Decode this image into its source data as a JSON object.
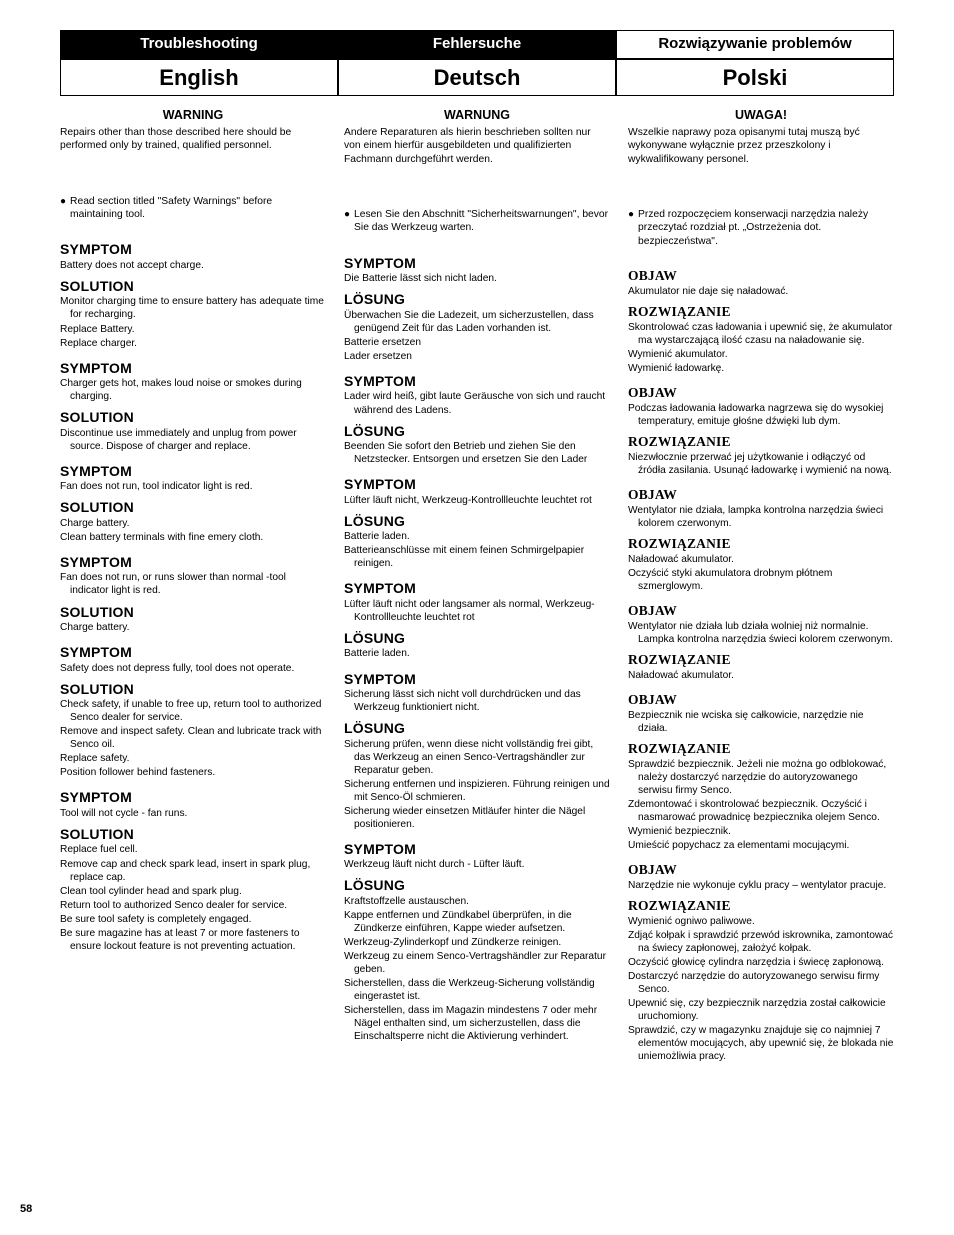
{
  "headers": {
    "section": {
      "en": "Troubleshooting",
      "de": "Fehlersuche",
      "pl": "Rozwiązywanie problemów"
    },
    "lang": {
      "en": "English",
      "de": "Deutsch",
      "pl": "Polski"
    }
  },
  "warning": {
    "en": {
      "title": "WARNING",
      "body": "Repairs other than those described here should be performed only by trained, qualified personnel."
    },
    "de": {
      "title": "WARNUNG",
      "body": "Andere Reparaturen als hierin beschrieben sollten nur von einem hierfür ausgebildeten und qualifizierten Fachmann durchgeführt werden."
    },
    "pl": {
      "title": "UWAGA!",
      "body": "Wszelkie naprawy poza opisanymi tutaj muszą być wykonywane wyłącznie przez przeszkolony i wykwalifikowany personel."
    }
  },
  "bullet": {
    "en": "Read section titled \"Safety Warnings\" before maintaining tool.",
    "de": "Lesen Sie den Abschnitt \"Sicherheitswarnungen\", bevor Sie das Werkzeug warten.",
    "pl": "Przed rozpoczęciem konserwacji narzędzia należy przeczytać rozdział pt. „Ostrzeżenia dot. bezpieczeństwa\"."
  },
  "labels": {
    "en": {
      "symptom": "SYMPTOM",
      "solution": "SOLUTION"
    },
    "de": {
      "symptom": "SYMPTOM",
      "solution": "LÖSUNG"
    },
    "pl": {
      "symptom": "OBJAW",
      "solution": "ROZWIĄZANIE"
    }
  },
  "en_items": [
    {
      "sym": "Battery does not accept charge.",
      "sol": [
        "Monitor charging time to ensure battery has adequate time for recharging.",
        "Replace Battery.",
        "Replace charger."
      ]
    },
    {
      "sym": "Charger gets hot, makes loud noise or smokes during charging.",
      "sol": [
        "Discontinue use immediately and unplug from power source. Dispose of charger and replace."
      ]
    },
    {
      "sym": "Fan does not run, tool indicator light is red.",
      "sol": [
        "Charge battery.",
        "Clean battery terminals with fine emery cloth."
      ]
    },
    {
      "sym": "Fan does not run, or runs slower than normal -tool indicator light is red.",
      "sol": [
        "Charge battery."
      ]
    },
    {
      "sym": "Safety does not depress fully, tool does not operate.",
      "sol": [
        "Check safety, if unable to free up, return tool to authorized Senco dealer for service.",
        "Remove and inspect safety. Clean and lubricate track with Senco oil.",
        "Replace safety.",
        "Position follower behind fasteners."
      ]
    },
    {
      "sym": "Tool will not cycle - fan runs.",
      "sol": [
        "Replace fuel cell.",
        "Remove cap and check spark lead, insert in spark plug, replace cap.",
        "Clean tool cylinder head and spark plug.",
        "Return tool to authorized Senco dealer for service.",
        "Be sure tool safety is completely engaged.",
        "Be  sure magazine has at least 7 or more fasteners to ensure lockout feature is not preventing actuation."
      ]
    }
  ],
  "de_items": [
    {
      "sym": "Die Batterie lässt sich nicht laden.",
      "sol": [
        "Überwachen Sie die Ladezeit, um sicherzustellen, dass genügend Zeit für das Laden vorhanden ist.",
        "Batterie ersetzen",
        "Lader ersetzen"
      ]
    },
    {
      "sym": "Lader wird heiß, gibt laute Geräusche von sich und raucht während des Ladens.",
      "sol": [
        "Beenden Sie sofort den Betrieb und ziehen Sie den Netzstecker. Entsorgen und ersetzen Sie den Lader"
      ]
    },
    {
      "sym": "Lüfter läuft nicht, Werkzeug-Kontrollleuchte leuchtet rot",
      "sol": [
        "Batterie laden.",
        "Batterieanschlüsse mit einem feinen Schmirgelpapier reinigen."
      ]
    },
    {
      "sym": "Lüfter läuft nicht oder langsamer als normal, Werkzeug-Kontrollleuchte leuchtet rot",
      "sol": [
        "Batterie laden."
      ]
    },
    {
      "sym": "Sicherung lässt sich nicht voll durchdrücken und das Werkzeug funktioniert nicht.",
      "sol": [
        "Sicherung prüfen, wenn diese nicht vollständig frei gibt, das Werkzeug an einen Senco-Vertragshändler zur Reparatur geben.",
        "Sicherung entfernen und inspizieren. Führung reinigen und mit Senco-Öl schmieren.",
        "Sicherung wieder einsetzen Mitläufer hinter die Nägel positionieren."
      ]
    },
    {
      "sym": "Werkzeug läuft nicht durch - Lüfter läuft.",
      "sol": [
        "Kraftstoffzelle austauschen.",
        "Kappe entfernen und Zündkabel überprüfen, in die Zündkerze einführen, Kappe wieder aufsetzen.",
        "Werkzeug-Zylinderkopf und Zündkerze reinigen.",
        "Werkzeug zu einem Senco-Vertragshändler zur Reparatur geben.",
        "Sicherstellen, dass die Werkzeug-Sicherung vollständig eingerastet ist.",
        "Sicherstellen, dass im Magazin mindestens 7 oder mehr Nägel enthalten sind, um sicherzustellen, dass die Einschaltsperre nicht die Aktivierung verhindert."
      ]
    }
  ],
  "pl_items": [
    {
      "sym": "Akumulator nie daje się naładować.",
      "sol": [
        "Skontrolować czas ładowania i upewnić się, że akumulator ma wystarczającą ilość czasu na naładowanie się.",
        "Wymienić akumulator.",
        "Wymienić ładowarkę."
      ]
    },
    {
      "sym": "Podczas ładowania ładowarka nagrzewa się do wysokiej temperatury, emituje głośne dźwięki lub dym.",
      "sol": [
        "Niezwłocznie przerwać jej użytkowanie i odłączyć od źródła zasilania. Usunąć ładowarkę i wymienić na nową."
      ]
    },
    {
      "sym": "Wentylator nie działa, lampka kontrolna narzędzia świeci kolorem czerwonym.",
      "sol": [
        "Naładować akumulator.",
        "Oczyścić styki akumulatora drobnym płótnem szmerglowym."
      ]
    },
    {
      "sym": "Wentylator nie działa lub działa wolniej niż normalnie. Lampka kontrolna narzędzia świeci kolorem czerwonym.",
      "sol": [
        "Naładować akumulator."
      ]
    },
    {
      "sym": "Bezpiecznik nie wciska się całkowicie, narzędzie nie działa.",
      "sol": [
        "Sprawdzić bezpiecznik. Jeżeli nie można go odblokować, należy dostarczyć narzędzie do autoryzowanego serwisu firmy Senco.",
        "Zdemontować i skontrolować bezpiecznik. Oczyścić i nasmarować prowadnicę bezpiecznika olejem Senco.",
        "Wymienić bezpiecznik.",
        "Umieścić popychacz za elementami mocującymi."
      ]
    },
    {
      "sym": "Narzędzie nie wykonuje cyklu pracy – wentylator pracuje.",
      "sol": [
        "Wymienić ogniwo paliwowe.",
        "Zdjąć kołpak i sprawdzić przewód iskrownika, zamontować na świecy zapłonowej, założyć kołpak.",
        "Oczyścić głowicę cylindra narzędzia i świecę zapłonową.",
        "Dostarczyć narzędzie do autoryzowanego serwisu firmy Senco.",
        "Upewnić się, czy bezpiecznik narzędzia został całkowicie uruchomiony.",
        "Sprawdzić, czy w magazynku znajduje się co najmniej 7 elementów mocujących, aby upewnić się, że blokada nie uniemożliwia pracy."
      ]
    }
  ],
  "page_number": "58"
}
